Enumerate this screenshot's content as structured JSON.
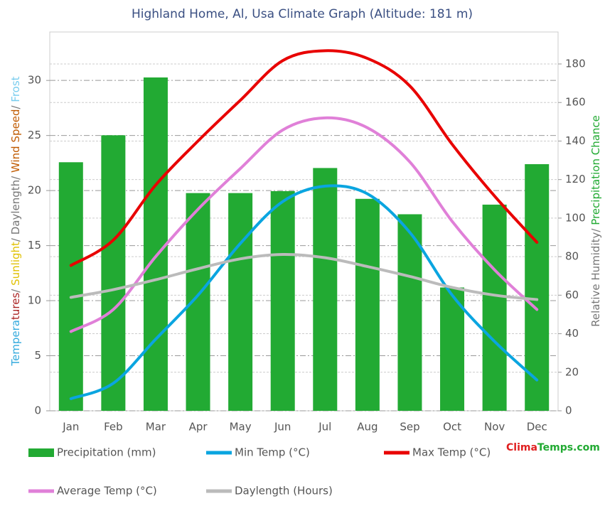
{
  "chart_data": {
    "type": "bar-line",
    "title": "Highland Home, Al, Usa Climate Graph (Altitude: 181 m)",
    "categories": [
      "Jan",
      "Feb",
      "Mar",
      "Apr",
      "May",
      "Jun",
      "Jul",
      "Aug",
      "Sep",
      "Oct",
      "Nov",
      "Dec"
    ],
    "y_label_parts": [
      {
        "text": "Tempera",
        "color": "#33aadd"
      },
      {
        "text": "tures",
        "color": "#aa2222"
      },
      {
        "text": "/ ",
        "color": "#777777"
      },
      {
        "text": "Sunlight",
        "color": "#e0c000"
      },
      {
        "text": "/ Daylength/ ",
        "color": "#777777"
      },
      {
        "text": "Wind Speed",
        "color": "#c05a00"
      },
      {
        "text": "/ ",
        "color": "#777777"
      },
      {
        "text": "Frost",
        "color": "#77ccee"
      }
    ],
    "y2_label_parts": [
      {
        "text": "Relative Humidity/ ",
        "color": "#777777"
      },
      {
        "text": "Precipitation Chance",
        "color": "#22aa33"
      }
    ],
    "ylim": [
      0,
      34.4
    ],
    "yticks": [
      0,
      5,
      10,
      15,
      20,
      25,
      30
    ],
    "y2lim": [
      0,
      196.6
    ],
    "y2ticks": [
      0,
      20,
      40,
      60,
      80,
      100,
      120,
      140,
      160,
      180
    ],
    "grid": true,
    "series": [
      {
        "name": "Precipitation (mm)",
        "type": "bar",
        "axis": "y2",
        "color": "#22aa33",
        "values": [
          129,
          143,
          173,
          113,
          113,
          114,
          126,
          110,
          102,
          64,
          107,
          128
        ]
      },
      {
        "name": "Min Temp (°C)",
        "type": "line",
        "color": "#0aa5e0",
        "values": [
          1.1,
          2.5,
          6.5,
          10.5,
          15.2,
          19,
          20.4,
          19.7,
          16.2,
          10.5,
          6.3,
          2.8
        ]
      },
      {
        "name": "Max Temp (°C)",
        "type": "line",
        "color": "#e80000",
        "values": [
          13.2,
          15.5,
          20.5,
          24.5,
          28.2,
          31.8,
          32.7,
          32,
          29.5,
          24.2,
          19.5,
          15.3
        ]
      },
      {
        "name": "Average Temp (°C)",
        "type": "line",
        "color": "#e080d8",
        "values": [
          7.2,
          9.2,
          14,
          18.3,
          22,
          25.5,
          26.6,
          25.7,
          22.6,
          17.2,
          12.8,
          9.2
        ]
      },
      {
        "name": "Daylength (Hours)",
        "type": "line",
        "color": "#bbbbbb",
        "values": [
          10.3,
          11,
          11.9,
          12.9,
          13.8,
          14.2,
          13.9,
          13.1,
          12.2,
          11.2,
          10.5,
          10.1
        ]
      }
    ],
    "brand_parts": [
      {
        "text": "Clima",
        "color": "#e02020"
      },
      {
        "text": "Temps.com",
        "color": "#22aa33"
      }
    ]
  }
}
